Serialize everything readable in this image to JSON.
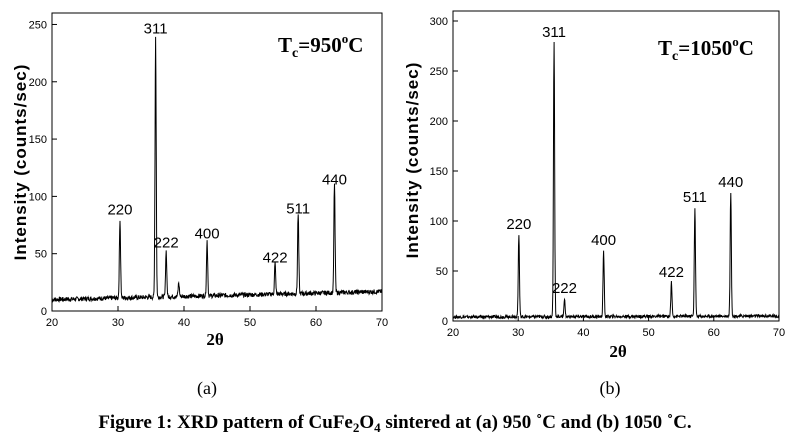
{
  "chart_data": [
    {
      "type": "line",
      "panel_label": "(a)",
      "xlabel": "2θ",
      "ylabel": "Intensity (counts/sec)",
      "annotation": {
        "main": "T",
        "sub": "c",
        "rest": "=950",
        "sup": "o",
        "unit": "C"
      },
      "xlim": [
        20,
        70
      ],
      "ylim": [
        0,
        260
      ],
      "xticks": [
        20,
        30,
        40,
        50,
        60,
        70
      ],
      "yticks": [
        0,
        50,
        100,
        150,
        200,
        250
      ],
      "baseline": 10,
      "baseline_end": 17,
      "noise": 2,
      "peaks": [
        {
          "label": "220",
          "x": 30.3,
          "y": 79
        },
        {
          "label": "311",
          "x": 35.7,
          "y": 237
        },
        {
          "label": "222",
          "x": 37.3,
          "y": 50
        },
        {
          "label": "",
          "x": 39.2,
          "y": 22
        },
        {
          "label": "400",
          "x": 43.5,
          "y": 58
        },
        {
          "label": "422",
          "x": 53.8,
          "y": 37
        },
        {
          "label": "511",
          "x": 57.3,
          "y": 80
        },
        {
          "label": "440",
          "x": 62.8,
          "y": 105
        }
      ]
    },
    {
      "type": "line",
      "panel_label": "(b)",
      "xlabel": "2θ",
      "ylabel": "Intensity (counts/sec)",
      "annotation": {
        "main": "T",
        "sub": "c",
        "rest": "=1050",
        "sup": "o",
        "unit": "C"
      },
      "xlim": [
        20,
        70
      ],
      "ylim": [
        0,
        310
      ],
      "xticks": [
        20,
        30,
        40,
        50,
        60,
        70
      ],
      "yticks": [
        0,
        50,
        100,
        150,
        200,
        250,
        300
      ],
      "baseline": 4,
      "baseline_end": 5,
      "noise": 1.5,
      "peaks": [
        {
          "label": "220",
          "x": 30.1,
          "y": 86
        },
        {
          "label": "311",
          "x": 35.5,
          "y": 278
        },
        {
          "label": "222",
          "x": 37.1,
          "y": 22
        },
        {
          "label": "400",
          "x": 43.1,
          "y": 70
        },
        {
          "label": "422",
          "x": 53.5,
          "y": 38
        },
        {
          "label": "511",
          "x": 57.1,
          "y": 113
        },
        {
          "label": "440",
          "x": 62.6,
          "y": 128
        }
      ]
    }
  ],
  "caption": {
    "prefix": "Figure 1: XRD pattern of CuFe",
    "sub1": "2",
    "mid": "O",
    "sub2": "4",
    "suffix": " sintered at (a) 950 ˚C and (b) 1050 ˚C."
  }
}
